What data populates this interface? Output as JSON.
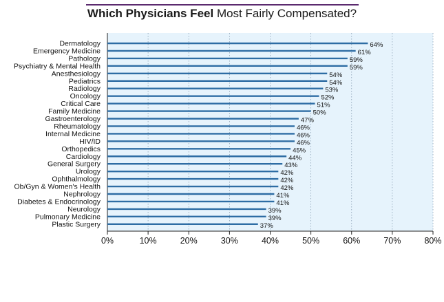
{
  "title": {
    "bold": "Which Physicians Feel",
    "regular": "Most Fairly Compensated?"
  },
  "colors": {
    "bar": "#2e6da4",
    "plot_bg": "#e6f3fc",
    "grid": "#8aa0b4",
    "title_rule": "#5b2a6e"
  },
  "chart_data": {
    "type": "bar",
    "orientation": "horizontal",
    "categories": [
      "Dermatology",
      "Emergency Medicine",
      "Pathology",
      "Psychiatry & Mental Health",
      "Anesthesiology",
      "Pediatrics",
      "Radiology",
      "Oncology",
      "Critical Care",
      "Family Medicine",
      "Gastroenterology",
      "Rheumatology",
      "Internal Medicine",
      "HIV/ID",
      "Orthopedics",
      "Cardiology",
      "General Surgery",
      "Urology",
      "Ophthalmology",
      "Ob/Gyn & Women's Health",
      "Nephrology",
      "Diabetes & Endocrinology",
      "Neurology",
      "Pulmonary Medicine",
      "Plastic Surgery"
    ],
    "values": [
      64,
      61,
      59,
      59,
      54,
      54,
      53,
      52,
      51,
      50,
      47,
      46,
      46,
      46,
      45,
      44,
      43,
      42,
      42,
      42,
      41,
      41,
      39,
      39,
      37
    ],
    "value_labels": [
      "64%",
      "61%",
      "59%",
      "59%",
      "54%",
      "54%",
      "53%",
      "52%",
      "51%",
      "50%",
      "47%",
      "46%",
      "46%",
      "46%",
      "45%",
      "44%",
      "43%",
      "42%",
      "42%",
      "42%",
      "41%",
      "41%",
      "39%",
      "39%",
      "37%"
    ],
    "xlim": [
      0,
      80
    ],
    "xticks": [
      0,
      10,
      20,
      30,
      40,
      50,
      60,
      70,
      80
    ],
    "xtick_labels": [
      "0%",
      "10%",
      "20%",
      "30%",
      "40%",
      "50%",
      "60%",
      "70%",
      "80%"
    ],
    "grid": true,
    "xlabel": "",
    "ylabel": ""
  }
}
